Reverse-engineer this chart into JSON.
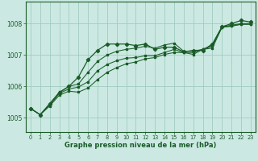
{
  "background_color": "#cbe9e2",
  "plot_bg_color": "#cbe9e2",
  "grid_color": "#a0ccc0",
  "line_color": "#1a5c28",
  "xlabel": "Graphe pression niveau de la mer (hPa)",
  "ylim": [
    1004.55,
    1008.7
  ],
  "xlim": [
    -0.5,
    23.5
  ],
  "yticks": [
    1005,
    1006,
    1007,
    1008
  ],
  "xticks": [
    0,
    1,
    2,
    3,
    4,
    5,
    6,
    7,
    8,
    9,
    10,
    11,
    12,
    13,
    14,
    15,
    16,
    17,
    18,
    19,
    20,
    21,
    22,
    23
  ],
  "series": [
    [
      1005.3,
      1005.1,
      1005.45,
      1005.8,
      1006.0,
      1006.3,
      1006.85,
      1007.15,
      1007.35,
      1007.35,
      1007.35,
      1007.3,
      1007.35,
      1007.18,
      1007.25,
      1007.25,
      1007.1,
      1007.15,
      1007.15,
      1007.35,
      1007.9,
      1008.0,
      1008.1,
      1008.05
    ],
    [
      1005.3,
      1005.1,
      1005.45,
      1005.82,
      1006.0,
      1006.08,
      1006.45,
      1006.8,
      1007.0,
      1007.12,
      1007.18,
      1007.22,
      1007.28,
      1007.22,
      1007.32,
      1007.38,
      1007.12,
      1007.12,
      1007.18,
      1007.32,
      1007.9,
      1007.95,
      1008.0,
      1008.0
    ],
    [
      1005.3,
      1005.1,
      1005.4,
      1005.78,
      1005.92,
      1005.98,
      1006.15,
      1006.5,
      1006.7,
      1006.82,
      1006.9,
      1006.92,
      1006.98,
      1006.98,
      1007.08,
      1007.18,
      1007.08,
      1007.08,
      1007.18,
      1007.28,
      1007.88,
      1007.92,
      1007.98,
      1007.98
    ],
    [
      1005.3,
      1005.1,
      1005.38,
      1005.72,
      1005.85,
      1005.82,
      1005.95,
      1006.22,
      1006.45,
      1006.6,
      1006.72,
      1006.78,
      1006.88,
      1006.92,
      1007.02,
      1007.08,
      1007.08,
      1007.02,
      1007.18,
      1007.22,
      1007.88,
      1007.92,
      1007.98,
      1007.98
    ]
  ]
}
